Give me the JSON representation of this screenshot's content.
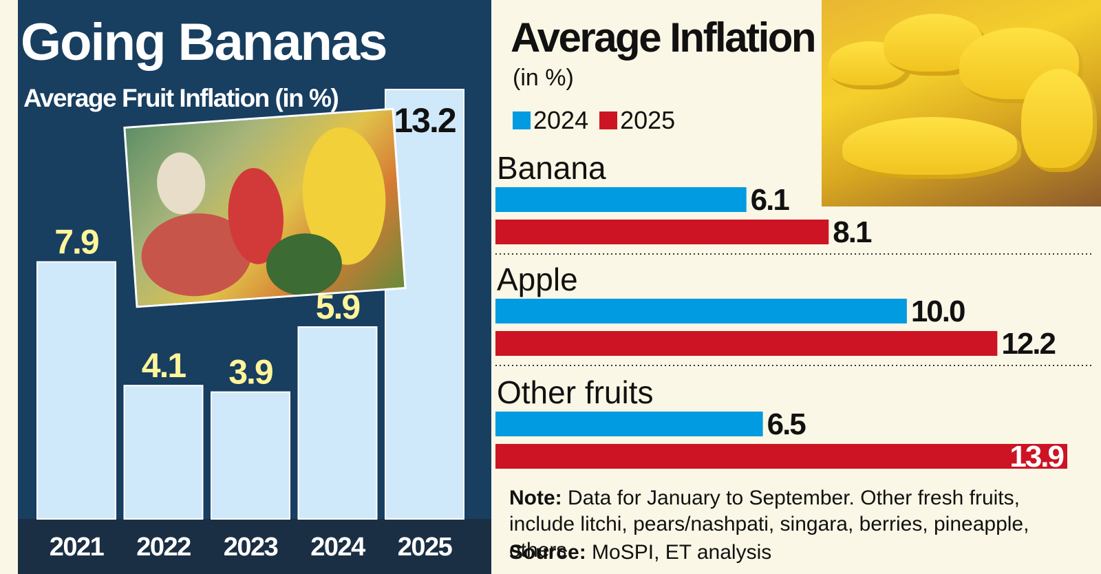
{
  "left": {
    "title": "Going Bananas",
    "subtitle": "Average Fruit Inflation (in %)"
  },
  "right": {
    "title": "Average Inflation",
    "subtitle": "(in %)"
  },
  "note": {
    "label": "Note:",
    "text": "Data for January to September. Other fresh fruits, include litchi, pears/nashpati, singara, berries, pineapple, others"
  },
  "source": {
    "label": "Source:",
    "text": "MoSPI, ET analysis"
  },
  "colors": {
    "panel": "#183e60",
    "column": "#cfe9fa",
    "column_label": "#fff59a",
    "series_2024": "#009be1",
    "series_2025": "#cc1424"
  },
  "chart_data": [
    {
      "type": "bar",
      "orientation": "vertical",
      "title": "Going Bananas",
      "subtitle": "Average Fruit Inflation (in %)",
      "categories": [
        "2021",
        "2022",
        "2023",
        "2024",
        "2025"
      ],
      "values": [
        7.9,
        4.1,
        3.9,
        5.9,
        13.2
      ],
      "value_labels": [
        "7.9",
        "4.1",
        "3.9",
        "5.9",
        "13.2"
      ],
      "ylim": [
        0,
        13.2
      ],
      "grid": false
    },
    {
      "type": "bar",
      "orientation": "horizontal",
      "title": "Average Inflation",
      "subtitle": "(in %)",
      "categories": [
        "Banana",
        "Apple",
        "Other fruits"
      ],
      "series": [
        {
          "name": "2024",
          "values": [
            6.1,
            10.0,
            6.5
          ],
          "labels": [
            "6.1",
            "10.0",
            "6.5"
          ]
        },
        {
          "name": "2025",
          "values": [
            8.1,
            12.2,
            13.9
          ],
          "labels": [
            "8.1",
            "12.2",
            "13.9"
          ]
        }
      ],
      "xlim": [
        0,
        13.9
      ],
      "legend": "top-left",
      "grid": false
    }
  ]
}
